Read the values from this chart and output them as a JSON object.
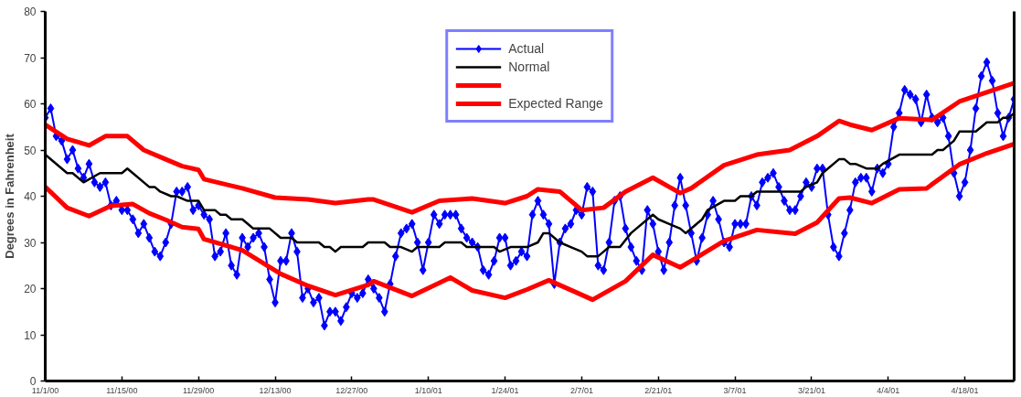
{
  "chart_data": {
    "type": "line",
    "ylabel": "Degrees in Fahrenheit",
    "x": [
      "2000-11-01",
      "2000-11-02",
      "2000-11-03",
      "2000-11-04",
      "2000-11-05",
      "2000-11-06",
      "2000-11-07",
      "2000-11-08",
      "2000-11-09",
      "2000-11-10",
      "2000-11-11",
      "2000-11-12",
      "2000-11-13",
      "2000-11-14",
      "2000-11-15",
      "2000-11-16",
      "2000-11-17",
      "2000-11-18",
      "2000-11-19",
      "2000-11-20",
      "2000-11-21",
      "2000-11-22",
      "2000-11-23",
      "2000-11-24",
      "2000-11-25",
      "2000-11-26",
      "2000-11-27",
      "2000-11-28",
      "2000-11-29",
      "2000-11-30",
      "2000-12-01",
      "2000-12-02",
      "2000-12-03",
      "2000-12-04",
      "2000-12-05",
      "2000-12-06",
      "2000-12-07",
      "2000-12-08",
      "2000-12-09",
      "2000-12-10",
      "2000-12-11",
      "2000-12-12",
      "2000-12-13",
      "2000-12-14",
      "2000-12-15",
      "2000-12-16",
      "2000-12-17",
      "2000-12-18",
      "2000-12-19",
      "2000-12-20",
      "2000-12-21",
      "2000-12-22",
      "2000-12-23",
      "2000-12-24",
      "2000-12-25",
      "2000-12-26",
      "2000-12-27",
      "2000-12-28",
      "2000-12-29",
      "2000-12-30",
      "2000-12-31",
      "2001-01-01",
      "2001-01-02",
      "2001-01-03",
      "2001-01-04",
      "2001-01-05",
      "2001-01-06",
      "2001-01-07",
      "2001-01-08",
      "2001-01-09",
      "2001-01-10",
      "2001-01-11",
      "2001-01-12",
      "2001-01-13",
      "2001-01-14",
      "2001-01-15",
      "2001-01-16",
      "2001-01-17",
      "2001-01-18",
      "2001-01-19",
      "2001-01-20",
      "2001-01-21",
      "2001-01-22",
      "2001-01-23",
      "2001-01-24",
      "2001-01-25",
      "2001-01-26",
      "2001-01-27",
      "2001-01-28",
      "2001-01-29",
      "2001-01-30",
      "2001-01-31",
      "2001-02-01",
      "2001-02-02",
      "2001-02-03",
      "2001-02-04",
      "2001-02-05",
      "2001-02-06",
      "2001-02-07",
      "2001-02-08",
      "2001-02-09",
      "2001-02-10",
      "2001-02-11",
      "2001-02-12",
      "2001-02-13",
      "2001-02-14",
      "2001-02-15",
      "2001-02-16",
      "2001-02-17",
      "2001-02-18",
      "2001-02-19",
      "2001-02-20",
      "2001-02-21",
      "2001-02-22",
      "2001-02-23",
      "2001-02-24",
      "2001-02-25",
      "2001-02-26",
      "2001-02-27",
      "2001-02-28",
      "2001-03-01",
      "2001-03-02",
      "2001-03-03",
      "2001-03-04",
      "2001-03-05",
      "2001-03-06",
      "2001-03-07",
      "2001-03-08",
      "2001-03-09",
      "2001-03-10",
      "2001-03-11",
      "2001-03-12",
      "2001-03-13",
      "2001-03-14",
      "2001-03-15",
      "2001-03-16",
      "2001-03-17",
      "2001-03-18",
      "2001-03-19",
      "2001-03-20",
      "2001-03-21",
      "2001-03-22",
      "2001-03-23",
      "2001-03-24",
      "2001-03-25",
      "2001-03-26",
      "2001-03-27",
      "2001-03-28",
      "2001-03-29",
      "2001-03-30",
      "2001-03-31",
      "2001-04-01",
      "2001-04-02",
      "2001-04-03",
      "2001-04-04",
      "2001-04-05",
      "2001-04-06",
      "2001-04-07",
      "2001-04-08",
      "2001-04-09",
      "2001-04-10",
      "2001-04-11",
      "2001-04-12",
      "2001-04-13",
      "2001-04-14",
      "2001-04-15",
      "2001-04-16",
      "2001-04-17",
      "2001-04-18",
      "2001-04-19",
      "2001-04-20",
      "2001-04-21",
      "2001-04-22",
      "2001-04-23",
      "2001-04-24",
      "2001-04-25",
      "2001-04-26",
      "2001-04-27"
    ],
    "series": [
      {
        "name": "Actual",
        "color": "#0000ff",
        "marker": "diamond",
        "values": [
          57,
          59,
          53,
          52,
          48,
          50,
          46,
          44,
          47,
          43,
          42,
          43,
          38,
          39,
          37,
          37,
          35,
          32,
          34,
          31,
          28,
          27,
          30,
          34,
          41,
          41,
          42,
          37,
          38,
          36,
          35,
          27,
          28,
          32,
          25,
          23,
          31,
          29,
          31,
          32,
          29,
          22,
          17,
          26,
          26,
          32,
          28,
          18,
          20,
          17,
          18,
          12,
          15,
          15,
          13,
          16,
          19,
          18,
          19,
          22,
          20,
          18,
          15,
          21,
          27,
          32,
          33,
          34,
          30,
          24,
          30,
          36,
          34,
          36,
          36,
          36,
          33,
          31,
          30,
          29,
          24,
          23,
          26,
          31,
          31,
          25,
          26,
          28,
          27,
          36,
          39,
          36,
          34,
          21,
          30,
          33,
          34,
          37,
          36,
          42,
          41,
          25,
          24,
          30,
          39,
          40,
          33,
          29,
          26,
          24,
          37,
          34,
          28,
          24,
          30,
          38,
          44,
          38,
          32,
          26,
          31,
          36,
          39,
          35,
          30,
          29,
          34,
          34,
          34,
          40,
          38,
          43,
          44,
          45,
          42,
          39,
          37,
          37,
          40,
          43,
          42,
          46,
          46,
          36,
          29,
          27,
          32,
          37,
          43,
          44,
          44,
          41,
          46,
          45,
          47,
          55,
          58,
          63,
          62,
          61,
          56,
          62,
          57,
          56,
          57,
          53,
          45,
          40,
          43,
          50,
          59,
          66,
          69,
          65,
          58,
          53,
          57,
          61
        ]
      },
      {
        "name": "Normal",
        "color": "#000000",
        "marker": "none",
        "x": [
          "2000-11-01",
          "2000-11-05",
          "2000-11-06",
          "2000-11-08",
          "2000-11-11",
          "2000-11-15",
          "2000-11-16",
          "2000-11-20",
          "2000-11-21",
          "2000-11-22",
          "2000-11-24",
          "2000-11-25",
          "2000-11-27",
          "2000-11-29",
          "2000-11-30",
          "2000-12-02",
          "2000-12-03",
          "2000-12-04",
          "2000-12-05",
          "2000-12-07",
          "2000-12-08",
          "2000-12-09",
          "2000-12-12",
          "2000-12-14",
          "2000-12-16",
          "2000-12-17",
          "2000-12-21",
          "2000-12-22",
          "2000-12-23",
          "2000-12-24",
          "2000-12-25",
          "2000-12-29",
          "2000-12-30",
          "2001-01-02",
          "2001-01-03",
          "2001-01-05",
          "2001-01-07",
          "2001-01-08",
          "2001-01-12",
          "2001-01-13",
          "2001-01-16",
          "2001-01-17",
          "2001-01-22",
          "2001-01-23",
          "2001-01-25",
          "2001-01-28",
          "2001-01-30",
          "2001-01-31",
          "2001-02-01",
          "2001-02-02",
          "2001-02-03",
          "2001-02-05",
          "2001-02-07",
          "2001-02-08",
          "2001-02-10",
          "2001-02-11",
          "2001-02-12",
          "2001-02-14",
          "2001-02-16",
          "2001-02-20",
          "2001-02-21",
          "2001-02-23",
          "2001-02-25",
          "2001-02-26",
          "2001-03-01",
          "2001-03-02",
          "2001-03-05",
          "2001-03-07",
          "2001-03-08",
          "2001-03-10",
          "2001-03-11",
          "2001-03-19",
          "2001-03-20",
          "2001-03-22",
          "2001-03-23",
          "2001-03-26",
          "2001-03-27",
          "2001-03-28",
          "2001-03-29",
          "2001-03-31",
          "2001-04-02",
          "2001-04-03",
          "2001-04-06",
          "2001-04-12",
          "2001-04-13",
          "2001-04-14",
          "2001-04-16",
          "2001-04-17",
          "2001-04-20",
          "2001-04-22",
          "2001-04-24",
          "2001-04-25",
          "2001-04-26",
          "2001-04-27"
        ],
        "values": [
          49,
          45,
          45,
          43,
          45,
          45,
          46,
          42,
          42,
          41,
          40,
          40,
          39,
          39,
          37,
          37,
          36,
          36,
          35,
          35,
          34,
          33,
          33,
          31,
          31,
          30,
          30,
          29,
          29,
          28,
          29,
          29,
          30,
          30,
          29,
          29,
          28,
          29,
          29,
          30,
          30,
          29,
          29,
          28,
          29,
          29,
          30,
          32,
          32,
          31,
          30,
          29,
          28,
          27,
          27,
          28,
          29,
          29,
          32,
          36,
          35,
          34,
          33,
          32,
          35,
          37,
          39,
          39,
          40,
          40,
          41,
          41,
          42,
          43,
          45,
          48,
          48,
          47,
          47,
          46,
          46,
          47,
          49,
          49,
          50,
          50,
          52,
          54,
          54,
          56,
          56,
          57,
          57,
          58
        ]
      },
      {
        "color": "#ff0000",
        "marker": "none",
        "x": [
          "2000-11-01",
          "2000-11-05",
          "2000-11-09",
          "2000-11-12",
          "2000-11-16",
          "2000-11-19",
          "2000-11-23",
          "2000-11-26",
          "2000-11-29",
          "2000-11-30",
          "2000-12-07",
          "2000-12-13",
          "2000-12-19",
          "2000-12-24",
          "2000-12-30",
          "2000-12-31",
          "2001-01-07",
          "2001-01-12",
          "2001-01-18",
          "2001-01-24",
          "2001-01-28",
          "2001-01-30",
          "2001-02-03",
          "2001-02-07",
          "2001-02-11",
          "2001-02-15",
          "2001-02-20",
          "2001-02-23",
          "2001-02-25",
          "2001-02-27",
          "2001-03-05",
          "2001-03-11",
          "2001-03-17",
          "2001-03-22",
          "2001-03-26",
          "2001-03-28",
          "2001-04-01",
          "2001-04-06",
          "2001-04-12",
          "2001-04-17",
          "2001-04-22",
          "2001-04-27"
        ],
        "values": [
          55.5,
          52.4,
          51,
          53,
          53,
          50,
          48,
          46.5,
          45.7,
          43.7,
          41.7,
          39.7,
          39.3,
          38.5,
          39.3,
          39.3,
          36.5,
          39,
          39.5,
          38.5,
          40,
          41.5,
          41,
          37,
          37.5,
          41,
          44,
          42,
          40.7,
          41.7,
          46.7,
          49,
          50,
          53,
          56.3,
          55.5,
          54.3,
          56.9,
          56.5,
          60.5,
          62.5,
          64.5
        ]
      },
      {
        "name": "Expected Range",
        "color": "#ff0000",
        "marker": "none",
        "x": [
          "2000-11-01",
          "2000-11-05",
          "2000-11-09",
          "2000-11-13",
          "2000-11-17",
          "2000-11-20",
          "2000-11-23",
          "2000-11-26",
          "2000-11-29",
          "2000-11-30",
          "2000-12-07",
          "2000-12-14",
          "2000-12-19",
          "2000-12-24",
          "2000-12-30",
          "2000-12-31",
          "2001-01-07",
          "2001-01-14",
          "2001-01-18",
          "2001-01-24",
          "2001-01-28",
          "2001-02-01",
          "2001-02-09",
          "2001-02-15",
          "2001-02-20",
          "2001-02-25",
          "2001-02-28",
          "2001-03-05",
          "2001-03-11",
          "2001-03-18",
          "2001-03-22",
          "2001-03-26",
          "2001-03-28",
          "2001-04-01",
          "2001-04-06",
          "2001-04-11",
          "2001-04-17",
          "2001-04-22",
          "2001-04-27"
        ],
        "values": [
          42,
          37.5,
          35.7,
          37.9,
          38.3,
          36.3,
          34.9,
          33.3,
          32.9,
          30.7,
          28.3,
          23.2,
          20.6,
          18.6,
          20.8,
          21.6,
          18.4,
          22.4,
          19.6,
          18,
          19.8,
          21.8,
          17.6,
          21.6,
          27.3,
          24.6,
          26.7,
          30.3,
          32.7,
          31.9,
          34.3,
          39.5,
          39.7,
          38.5,
          41.5,
          41.7,
          46.9,
          49.3,
          51.3
        ]
      }
    ],
    "xlim": [
      "2000-11-01",
      "2001-04-27"
    ],
    "xticks": [
      {
        "value": "2000-11-01",
        "label": "11/1/00"
      },
      {
        "value": "2000-11-15",
        "label": "11/15/00"
      },
      {
        "value": "2000-11-29",
        "label": "11/29/00"
      },
      {
        "value": "2000-12-13",
        "label": "12/13/00"
      },
      {
        "value": "2000-12-27",
        "label": "12/27/00"
      },
      {
        "value": "2001-01-10",
        "label": "1/10/01"
      },
      {
        "value": "2001-01-24",
        "label": "1/24/01"
      },
      {
        "value": "2001-02-07",
        "label": "2/7/01"
      },
      {
        "value": "2001-02-21",
        "label": "2/21/01"
      },
      {
        "value": "2001-03-07",
        "label": "3/7/01"
      },
      {
        "value": "2001-03-21",
        "label": "3/21/01"
      },
      {
        "value": "2001-04-04",
        "label": "4/4/01"
      },
      {
        "value": "2001-04-18",
        "label": "4/18/01"
      }
    ],
    "ylim": [
      0,
      80
    ],
    "yticks": [
      0,
      10,
      20,
      30,
      40,
      50,
      60,
      70,
      80
    ],
    "grid": false,
    "legend": "top",
    "line_style": "solid"
  }
}
